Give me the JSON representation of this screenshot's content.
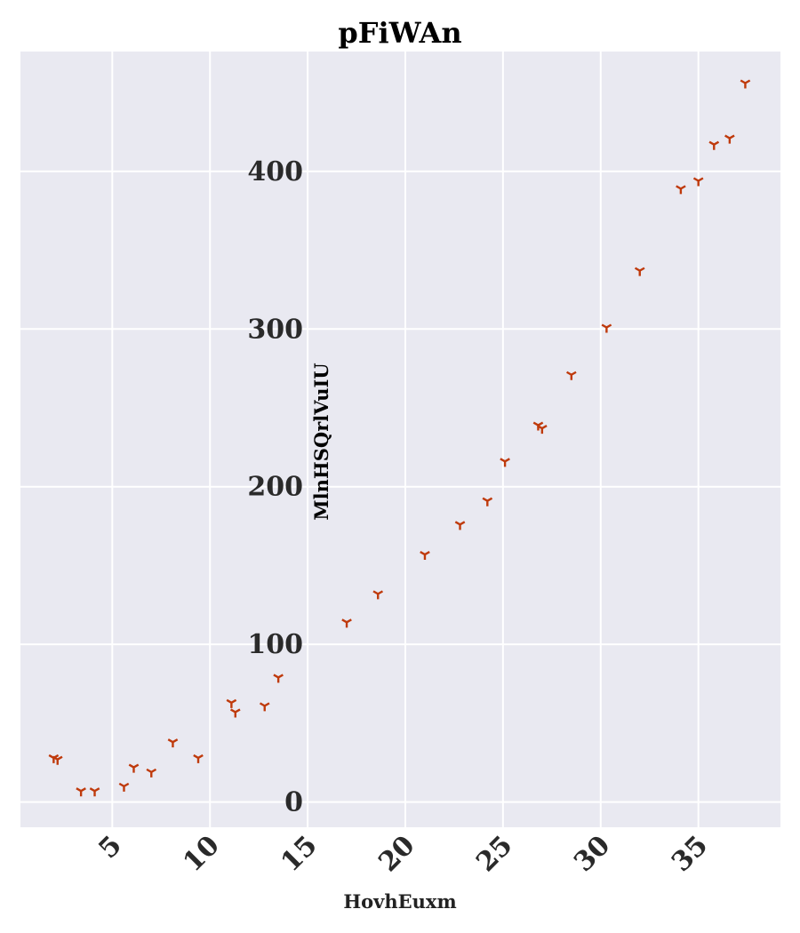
{
  "chart_data": {
    "type": "scatter",
    "title": "pFiWAn",
    "xlabel": "HovhEuxm",
    "ylabel": "MlnHSQrlVuIU",
    "xlim": [
      0.3,
      39.2
    ],
    "ylim": [
      -16,
      476
    ],
    "xticks": [
      5,
      10,
      15,
      20,
      25,
      30,
      35
    ],
    "yticks": [
      0,
      100,
      200,
      300,
      400
    ],
    "grid": true,
    "background": "#e9e9f1",
    "marker_color": "#bf3a0c",
    "marker": "tri_down",
    "series": [
      {
        "x": [
          2.0,
          2.2,
          3.4,
          4.1,
          5.6,
          6.1,
          7.0,
          8.1,
          9.4,
          11.1,
          11.3,
          12.8,
          13.5,
          17.0,
          18.6,
          21.0,
          22.8,
          24.2,
          25.1,
          26.8,
          27.0,
          28.5,
          30.3,
          32.0,
          34.1,
          35.0,
          35.8,
          36.6,
          37.4
        ],
        "y": [
          28,
          27,
          7,
          7,
          10,
          22,
          19,
          38,
          28,
          63,
          57,
          61,
          79,
          114,
          132,
          157,
          176,
          191,
          216,
          239,
          237,
          271,
          301,
          337,
          389,
          394,
          417,
          421,
          456
        ]
      }
    ]
  }
}
